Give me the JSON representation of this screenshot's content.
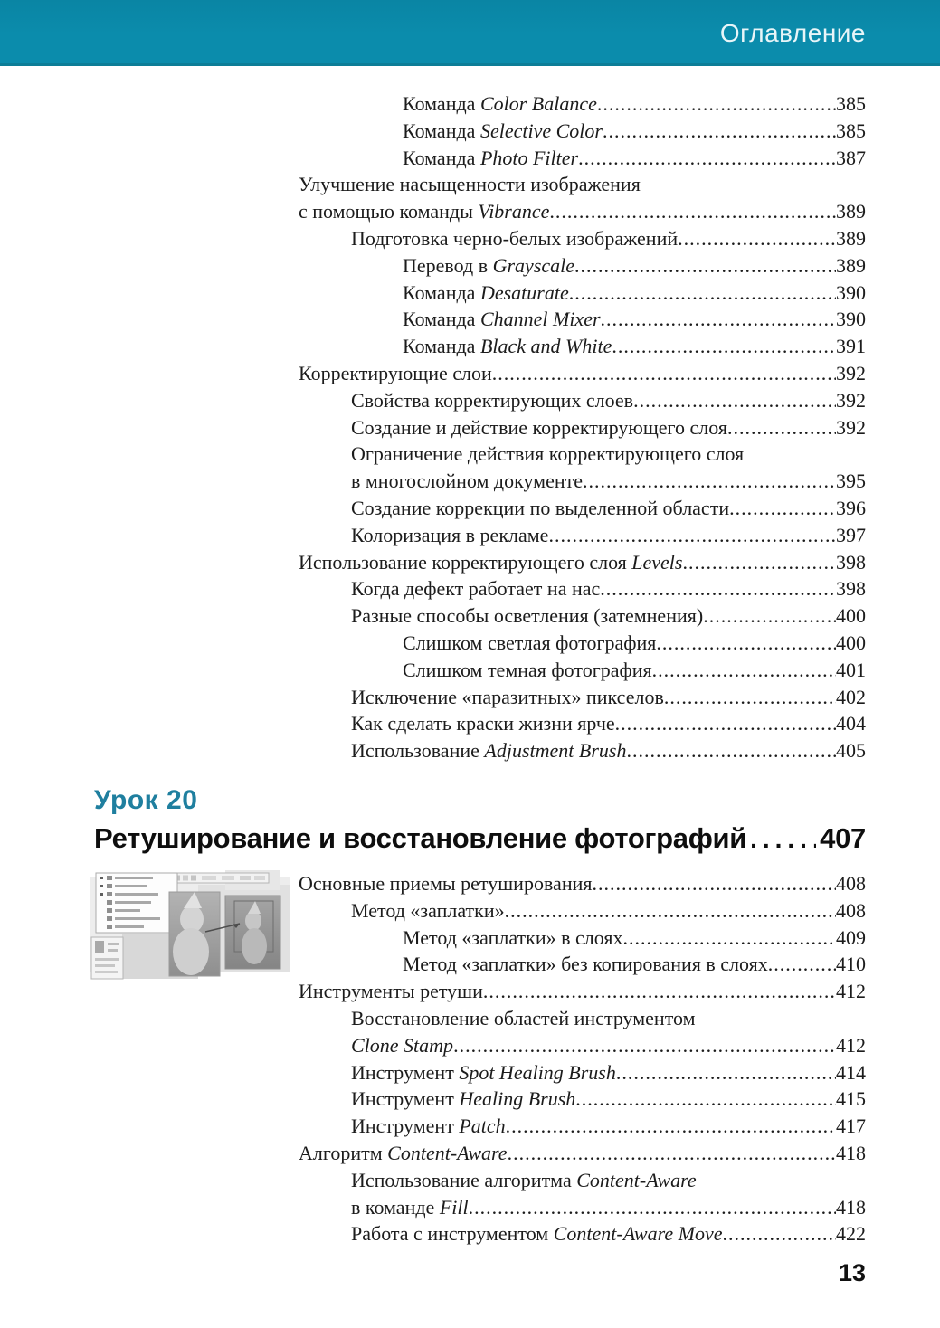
{
  "header": {
    "title": "Оглавление"
  },
  "page_number": "13",
  "colors": {
    "band_teal": "#0b8cac",
    "band_teal_top": "#0a85a4",
    "band_edge": "#0c7d97",
    "lesson_teal": "#1f7f9f",
    "text": "#1c1c1c",
    "header_text": "#e8f5f8"
  },
  "lesson": {
    "label": "Урок 20",
    "title": "Ретуширование и восстановление фотографий",
    "page": "407"
  },
  "thumbnail": {
    "description": "Grayscale Photoshop screenshot: retouching tools menu, options bar, and two old photos of a child being restored"
  },
  "toc_top": {
    "entries": [
      {
        "level": 3,
        "parts": [
          {
            "t": "Команда ",
            "i": false
          },
          {
            "t": "Color Balance",
            "i": true
          },
          {
            "t": " ",
            "i": false
          }
        ],
        "page": "385"
      },
      {
        "level": 3,
        "parts": [
          {
            "t": "Команда ",
            "i": false
          },
          {
            "t": "Selective Color",
            "i": true
          },
          {
            "t": " ",
            "i": false
          }
        ],
        "page": "385"
      },
      {
        "level": 3,
        "parts": [
          {
            "t": "Команда ",
            "i": false
          },
          {
            "t": "Photo Filter",
            "i": true
          },
          {
            "t": " ",
            "i": false
          }
        ],
        "page": "387"
      },
      {
        "level": 1,
        "parts": [
          {
            "t": "Улучшение насыщенности изображения",
            "i": false
          }
        ],
        "page": null
      },
      {
        "level": 1,
        "parts": [
          {
            "t": "с помощью команды ",
            "i": false
          },
          {
            "t": "Vibrance",
            "i": true
          },
          {
            "t": " ",
            "i": false
          }
        ],
        "page": "389"
      },
      {
        "level": 2,
        "parts": [
          {
            "t": "Подготовка черно-белых изображений",
            "i": false
          }
        ],
        "page": "389"
      },
      {
        "level": 3,
        "parts": [
          {
            "t": "Перевод в ",
            "i": false
          },
          {
            "t": "Grayscale",
            "i": true
          },
          {
            "t": " ",
            "i": false
          }
        ],
        "page": "389"
      },
      {
        "level": 3,
        "parts": [
          {
            "t": "Команда ",
            "i": false
          },
          {
            "t": "Desaturate",
            "i": true
          }
        ],
        "page": "390"
      },
      {
        "level": 3,
        "parts": [
          {
            "t": "Команда ",
            "i": false
          },
          {
            "t": "Channel Mixer",
            "i": true
          },
          {
            "t": " ",
            "i": false
          }
        ],
        "page": "390"
      },
      {
        "level": 3,
        "parts": [
          {
            "t": "Команда ",
            "i": false
          },
          {
            "t": "Black and White",
            "i": true
          }
        ],
        "page": "391"
      },
      {
        "level": 1,
        "parts": [
          {
            "t": "Корректирующие слои",
            "i": false
          }
        ],
        "page": "392"
      },
      {
        "level": 2,
        "parts": [
          {
            "t": "Свойства корректирующих слоев ",
            "i": false
          }
        ],
        "page": "392"
      },
      {
        "level": 2,
        "parts": [
          {
            "t": "Создание и действие корректирующего слоя",
            "i": false
          }
        ],
        "page": "392"
      },
      {
        "level": 2,
        "parts": [
          {
            "t": "Ограничение действия корректирующего слоя",
            "i": false
          }
        ],
        "page": null
      },
      {
        "level": 2,
        "parts": [
          {
            "t": "в многослойном документе",
            "i": false
          }
        ],
        "page": "395"
      },
      {
        "level": 2,
        "parts": [
          {
            "t": "Создание коррекции по выделенной области",
            "i": false
          }
        ],
        "page": "396"
      },
      {
        "level": 2,
        "parts": [
          {
            "t": "Колоризация в рекламе ",
            "i": false
          }
        ],
        "page": "397"
      },
      {
        "level": 1,
        "parts": [
          {
            "t": "Использование корректирующего слоя ",
            "i": false
          },
          {
            "t": "Levels",
            "i": true
          }
        ],
        "page": "398"
      },
      {
        "level": 2,
        "parts": [
          {
            "t": "Когда дефект работает на нас",
            "i": false
          }
        ],
        "page": "398"
      },
      {
        "level": 2,
        "parts": [
          {
            "t": "Разные способы осветления (затемнения) ",
            "i": false
          }
        ],
        "page": "400"
      },
      {
        "level": 3,
        "parts": [
          {
            "t": "Слишком светлая фотография ",
            "i": false
          }
        ],
        "page": "400"
      },
      {
        "level": 3,
        "parts": [
          {
            "t": "Слишком темная фотография",
            "i": false
          }
        ],
        "page": "401"
      },
      {
        "level": 2,
        "parts": [
          {
            "t": "Исключение «паразитных» пикселов ",
            "i": false
          }
        ],
        "page": "402"
      },
      {
        "level": 2,
        "parts": [
          {
            "t": "Как сделать краски жизни ярче ",
            "i": false
          }
        ],
        "page": "404"
      },
      {
        "level": 2,
        "parts": [
          {
            "t": "Использование ",
            "i": false
          },
          {
            "t": "Adjustment Brush",
            "i": true
          }
        ],
        "page": "405"
      }
    ]
  },
  "toc_lesson20": {
    "entries": [
      {
        "level": 1,
        "parts": [
          {
            "t": "Основные приемы ретуширования ",
            "i": false
          }
        ],
        "page": "408"
      },
      {
        "level": 2,
        "parts": [
          {
            "t": "Метод «заплатки» ",
            "i": false
          }
        ],
        "page": "408"
      },
      {
        "level": 3,
        "parts": [
          {
            "t": "Метод «заплатки» в слоях ",
            "i": false
          }
        ],
        "page": "409"
      },
      {
        "level": 3,
        "parts": [
          {
            "t": "Метод «заплатки» без копирования в слоях ",
            "i": false
          }
        ],
        "page": "410"
      },
      {
        "level": 1,
        "parts": [
          {
            "t": "Инструменты ретуши",
            "i": false
          }
        ],
        "page": "412"
      },
      {
        "level": 2,
        "parts": [
          {
            "t": "Восстановление областей инструментом",
            "i": false
          }
        ],
        "page": null
      },
      {
        "level": 2,
        "parts": [
          {
            "t": "Clone Stamp",
            "i": true
          },
          {
            "t": " ",
            "i": false
          }
        ],
        "page": "412"
      },
      {
        "level": 2,
        "parts": [
          {
            "t": "Инструмент ",
            "i": false
          },
          {
            "t": "Spot Healing Brush",
            "i": true
          },
          {
            "t": " ",
            "i": false
          }
        ],
        "page": "414"
      },
      {
        "level": 2,
        "parts": [
          {
            "t": "Инструмент ",
            "i": false
          },
          {
            "t": "Healing Brush",
            "i": true
          }
        ],
        "page": "415"
      },
      {
        "level": 2,
        "parts": [
          {
            "t": "Инструмент ",
            "i": false
          },
          {
            "t": "Patch",
            "i": true
          }
        ],
        "page": "417"
      },
      {
        "level": 1,
        "parts": [
          {
            "t": "Алгоритм ",
            "i": false
          },
          {
            "t": "Content-Aware",
            "i": true
          }
        ],
        "page": "418"
      },
      {
        "level": 2,
        "parts": [
          {
            "t": "Использование алгоритма ",
            "i": false
          },
          {
            "t": "Content-Aware",
            "i": true
          }
        ],
        "page": null
      },
      {
        "level": 2,
        "parts": [
          {
            "t": "в команде ",
            "i": false
          },
          {
            "t": "Fill",
            "i": true
          }
        ],
        "page": "418"
      },
      {
        "level": 2,
        "parts": [
          {
            "t": "Работа с инструментом ",
            "i": false
          },
          {
            "t": "Content-Aware Move",
            "i": true
          }
        ],
        "page": "422"
      }
    ]
  }
}
